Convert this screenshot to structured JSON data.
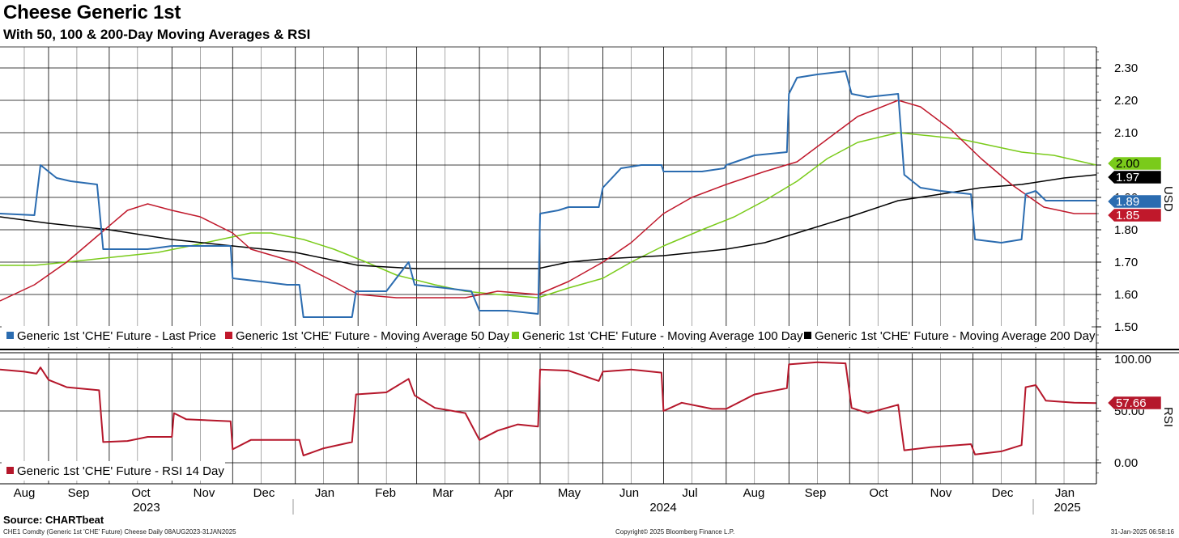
{
  "title": "Cheese Generic 1st",
  "subtitle": "With 50, 100 & 200-Day Moving Averages & RSI",
  "footer": {
    "source": "Source: CHARTbeat",
    "left": "CHE1 Comdty (Generic 1st 'CHE' Future) Cheese  Daily 08AUG2023-31JAN2025",
    "middle": "Copyright© 2025 Bloomberg Finance L.P.",
    "right": "31-Jan-2025 06:58:16"
  },
  "colors": {
    "last_price": "#2b6cb0",
    "ma50": "#c0182b",
    "ma100": "#7acb1a",
    "ma200": "#000000",
    "rsi": "#b5172b"
  },
  "chart_data": [
    {
      "type": "line",
      "panel": "price",
      "ylabel": "USD",
      "ylim": [
        1.45,
        2.35
      ],
      "yticks": [
        "2.30",
        "2.20",
        "2.10",
        "2.00",
        "1.90",
        "1.80",
        "1.70",
        "1.60",
        "1.50"
      ],
      "grid": true,
      "legend": "bottom",
      "x_month_labels": [
        "Aug",
        "Sep",
        "Oct",
        "Nov",
        "Dec",
        "Jan",
        "Feb",
        "Mar",
        "Apr",
        "May",
        "Jun",
        "Jul",
        "Aug",
        "Sep",
        "Oct",
        "Nov",
        "Dec",
        "Jan"
      ],
      "x_year_labels": [
        "2023",
        "2024",
        "2025"
      ],
      "series": [
        {
          "name": "Generic 1st 'CHE' Future - Last Price",
          "color": "#2b6cb0",
          "last_label": "1.89",
          "points": [
            [
              "2023-08-08",
              1.85
            ],
            [
              "2023-08-25",
              1.845
            ],
            [
              "2023-08-28",
              2.0
            ],
            [
              "2023-09-05",
              1.96
            ],
            [
              "2023-09-12",
              1.95
            ],
            [
              "2023-09-25",
              1.94
            ],
            [
              "2023-09-28",
              1.74
            ],
            [
              "2023-10-10",
              1.74
            ],
            [
              "2023-10-20",
              1.74
            ],
            [
              "2023-11-01",
              1.75
            ],
            [
              "2023-11-08",
              1.75
            ],
            [
              "2023-11-30",
              1.75
            ],
            [
              "2023-12-01",
              1.65
            ],
            [
              "2023-12-15",
              1.64
            ],
            [
              "2023-12-28",
              1.63
            ],
            [
              "2024-01-03",
              1.63
            ],
            [
              "2024-01-05",
              1.53
            ],
            [
              "2024-01-20",
              1.53
            ],
            [
              "2024-01-29",
              1.53
            ],
            [
              "2024-01-31",
              1.61
            ],
            [
              "2024-02-15",
              1.61
            ],
            [
              "2024-02-26",
              1.7
            ],
            [
              "2024-02-29",
              1.63
            ],
            [
              "2024-03-15",
              1.62
            ],
            [
              "2024-03-28",
              1.61
            ],
            [
              "2024-04-01",
              1.55
            ],
            [
              "2024-04-15",
              1.55
            ],
            [
              "2024-04-30",
              1.54
            ],
            [
              "2024-05-01",
              1.85
            ],
            [
              "2024-05-10",
              1.86
            ],
            [
              "2024-05-15",
              1.87
            ],
            [
              "2024-05-30",
              1.87
            ],
            [
              "2024-06-01",
              1.93
            ],
            [
              "2024-06-10",
              1.99
            ],
            [
              "2024-06-20",
              2.0
            ],
            [
              "2024-06-30",
              2.0
            ],
            [
              "2024-07-01",
              1.98
            ],
            [
              "2024-07-20",
              1.98
            ],
            [
              "2024-07-31",
              1.99
            ],
            [
              "2024-08-01",
              2.0
            ],
            [
              "2024-08-15",
              2.03
            ],
            [
              "2024-08-31",
              2.04
            ],
            [
              "2024-09-01",
              2.22
            ],
            [
              "2024-09-05",
              2.27
            ],
            [
              "2024-09-15",
              2.28
            ],
            [
              "2024-09-29",
              2.29
            ],
            [
              "2024-10-02",
              2.22
            ],
            [
              "2024-10-10",
              2.21
            ],
            [
              "2024-10-25",
              2.22
            ],
            [
              "2024-10-28",
              1.97
            ],
            [
              "2024-11-05",
              1.93
            ],
            [
              "2024-11-15",
              1.92
            ],
            [
              "2024-11-30",
              1.91
            ],
            [
              "2024-12-02",
              1.77
            ],
            [
              "2024-12-15",
              1.76
            ],
            [
              "2024-12-25",
              1.77
            ],
            [
              "2024-12-27",
              1.91
            ],
            [
              "2025-01-01",
              1.92
            ],
            [
              "2025-01-06",
              1.89
            ],
            [
              "2025-01-20",
              1.89
            ],
            [
              "2025-01-31",
              1.89
            ]
          ]
        },
        {
          "name": "Generic 1st 'CHE' Future - Moving Average 50 Day",
          "color": "#c0182b",
          "last_label": "1.85",
          "points": [
            [
              "2023-08-08",
              1.58
            ],
            [
              "2023-08-25",
              1.63
            ],
            [
              "2023-09-10",
              1.7
            ],
            [
              "2023-09-25",
              1.78
            ],
            [
              "2023-10-10",
              1.86
            ],
            [
              "2023-10-20",
              1.88
            ],
            [
              "2023-11-01",
              1.86
            ],
            [
              "2023-11-15",
              1.84
            ],
            [
              "2023-12-01",
              1.79
            ],
            [
              "2023-12-10",
              1.74
            ],
            [
              "2024-01-01",
              1.7
            ],
            [
              "2024-01-20",
              1.64
            ],
            [
              "2024-02-01",
              1.6
            ],
            [
              "2024-02-20",
              1.59
            ],
            [
              "2024-03-10",
              1.59
            ],
            [
              "2024-03-25",
              1.59
            ],
            [
              "2024-04-10",
              1.61
            ],
            [
              "2024-04-30",
              1.6
            ],
            [
              "2024-05-15",
              1.64
            ],
            [
              "2024-06-01",
              1.7
            ],
            [
              "2024-06-15",
              1.76
            ],
            [
              "2024-07-01",
              1.85
            ],
            [
              "2024-07-15",
              1.9
            ],
            [
              "2024-08-01",
              1.94
            ],
            [
              "2024-08-20",
              1.98
            ],
            [
              "2024-09-05",
              2.01
            ],
            [
              "2024-09-20",
              2.08
            ],
            [
              "2024-10-05",
              2.15
            ],
            [
              "2024-10-25",
              2.2
            ],
            [
              "2024-11-05",
              2.18
            ],
            [
              "2024-11-20",
              2.11
            ],
            [
              "2024-12-05",
              2.02
            ],
            [
              "2024-12-20",
              1.94
            ],
            [
              "2025-01-05",
              1.87
            ],
            [
              "2025-01-20",
              1.85
            ],
            [
              "2025-01-31",
              1.85
            ]
          ]
        },
        {
          "name": "Generic 1st 'CHE' Future - Moving Average 100 Day",
          "color": "#7acb1a",
          "last_label": "2.00",
          "points": [
            [
              "2023-08-08",
              1.69
            ],
            [
              "2023-08-25",
              1.69
            ],
            [
              "2023-09-10",
              1.7
            ],
            [
              "2023-09-25",
              1.71
            ],
            [
              "2023-10-10",
              1.72
            ],
            [
              "2023-10-25",
              1.73
            ],
            [
              "2023-11-10",
              1.75
            ],
            [
              "2023-11-25",
              1.77
            ],
            [
              "2023-12-10",
              1.79
            ],
            [
              "2023-12-20",
              1.79
            ],
            [
              "2024-01-05",
              1.77
            ],
            [
              "2024-01-20",
              1.74
            ],
            [
              "2024-02-05",
              1.7
            ],
            [
              "2024-02-20",
              1.66
            ],
            [
              "2024-03-10",
              1.63
            ],
            [
              "2024-03-25",
              1.61
            ],
            [
              "2024-04-10",
              1.6
            ],
            [
              "2024-04-30",
              1.59
            ],
            [
              "2024-05-15",
              1.62
            ],
            [
              "2024-06-01",
              1.65
            ],
            [
              "2024-06-15",
              1.7
            ],
            [
              "2024-07-01",
              1.75
            ],
            [
              "2024-07-20",
              1.8
            ],
            [
              "2024-08-05",
              1.84
            ],
            [
              "2024-08-20",
              1.89
            ],
            [
              "2024-09-05",
              1.95
            ],
            [
              "2024-09-20",
              2.02
            ],
            [
              "2024-10-05",
              2.07
            ],
            [
              "2024-10-25",
              2.1
            ],
            [
              "2024-11-10",
              2.09
            ],
            [
              "2024-11-25",
              2.08
            ],
            [
              "2024-12-10",
              2.06
            ],
            [
              "2024-12-25",
              2.04
            ],
            [
              "2025-01-10",
              2.03
            ],
            [
              "2025-01-31",
              2.0
            ]
          ]
        },
        {
          "name": "Generic 1st 'CHE' Future - Moving Average 200 Day",
          "color": "#000000",
          "last_label": "1.97",
          "points": [
            [
              "2023-08-08",
              1.84
            ],
            [
              "2023-09-01",
              1.82
            ],
            [
              "2023-10-01",
              1.8
            ],
            [
              "2023-11-01",
              1.77
            ],
            [
              "2023-12-01",
              1.75
            ],
            [
              "2024-01-01",
              1.73
            ],
            [
              "2024-02-01",
              1.69
            ],
            [
              "2024-03-01",
              1.68
            ],
            [
              "2024-04-01",
              1.68
            ],
            [
              "2024-04-30",
              1.68
            ],
            [
              "2024-05-15",
              1.7
            ],
            [
              "2024-06-01",
              1.71
            ],
            [
              "2024-07-01",
              1.72
            ],
            [
              "2024-08-01",
              1.74
            ],
            [
              "2024-08-20",
              1.76
            ],
            [
              "2024-09-05",
              1.79
            ],
            [
              "2024-10-01",
              1.84
            ],
            [
              "2024-10-25",
              1.89
            ],
            [
              "2024-11-15",
              1.91
            ],
            [
              "2024-12-05",
              1.93
            ],
            [
              "2024-12-25",
              1.94
            ],
            [
              "2025-01-15",
              1.96
            ],
            [
              "2025-01-31",
              1.97
            ]
          ]
        }
      ]
    },
    {
      "type": "line",
      "panel": "rsi",
      "ylabel": "RSI",
      "ylim": [
        -12,
        107
      ],
      "yticks": [
        "100.00",
        "50.00",
        "0.00"
      ],
      "grid": true,
      "legend": "bottom-left",
      "series": [
        {
          "name": "Generic 1st 'CHE' Future - RSI 14 Day",
          "color": "#b5172b",
          "last_label": "57.66",
          "points": [
            [
              "2023-08-08",
              90
            ],
            [
              "2023-08-20",
              88
            ],
            [
              "2023-08-26",
              86
            ],
            [
              "2023-08-28",
              92
            ],
            [
              "2023-09-01",
              80
            ],
            [
              "2023-09-10",
              73
            ],
            [
              "2023-09-26",
              70
            ],
            [
              "2023-09-28",
              20
            ],
            [
              "2023-10-10",
              21
            ],
            [
              "2023-10-20",
              25
            ],
            [
              "2023-11-01",
              25
            ],
            [
              "2023-11-02",
              48
            ],
            [
              "2023-11-08",
              42
            ],
            [
              "2023-11-30",
              40
            ],
            [
              "2023-12-01",
              13
            ],
            [
              "2023-12-10",
              22
            ],
            [
              "2023-12-25",
              22
            ],
            [
              "2024-01-03",
              22
            ],
            [
              "2024-01-05",
              7
            ],
            [
              "2024-01-15",
              14
            ],
            [
              "2024-01-29",
              20
            ],
            [
              "2024-01-31",
              66
            ],
            [
              "2024-02-15",
              68
            ],
            [
              "2024-02-26",
              81
            ],
            [
              "2024-02-29",
              65
            ],
            [
              "2024-03-10",
              53
            ],
            [
              "2024-03-25",
              48
            ],
            [
              "2024-04-01",
              22
            ],
            [
              "2024-04-10",
              31
            ],
            [
              "2024-04-20",
              37
            ],
            [
              "2024-04-30",
              35
            ],
            [
              "2024-05-01",
              90
            ],
            [
              "2024-05-15",
              89
            ],
            [
              "2024-05-30",
              79
            ],
            [
              "2024-06-01",
              88
            ],
            [
              "2024-06-15",
              90
            ],
            [
              "2024-06-30",
              87
            ],
            [
              "2024-07-01",
              50
            ],
            [
              "2024-07-10",
              58
            ],
            [
              "2024-07-25",
              52
            ],
            [
              "2024-08-01",
              52
            ],
            [
              "2024-08-15",
              66
            ],
            [
              "2024-08-31",
              72
            ],
            [
              "2024-09-01",
              95
            ],
            [
              "2024-09-15",
              97
            ],
            [
              "2024-09-29",
              96
            ],
            [
              "2024-10-02",
              53
            ],
            [
              "2024-10-10",
              48
            ],
            [
              "2024-10-25",
              56
            ],
            [
              "2024-10-28",
              12
            ],
            [
              "2024-11-10",
              15
            ],
            [
              "2024-11-30",
              18
            ],
            [
              "2024-12-02",
              8
            ],
            [
              "2024-12-15",
              11
            ],
            [
              "2024-12-25",
              17
            ],
            [
              "2024-12-27",
              73
            ],
            [
              "2025-01-01",
              75
            ],
            [
              "2025-01-06",
              60
            ],
            [
              "2025-01-20",
              58
            ],
            [
              "2025-01-31",
              57.66
            ]
          ]
        }
      ]
    }
  ]
}
